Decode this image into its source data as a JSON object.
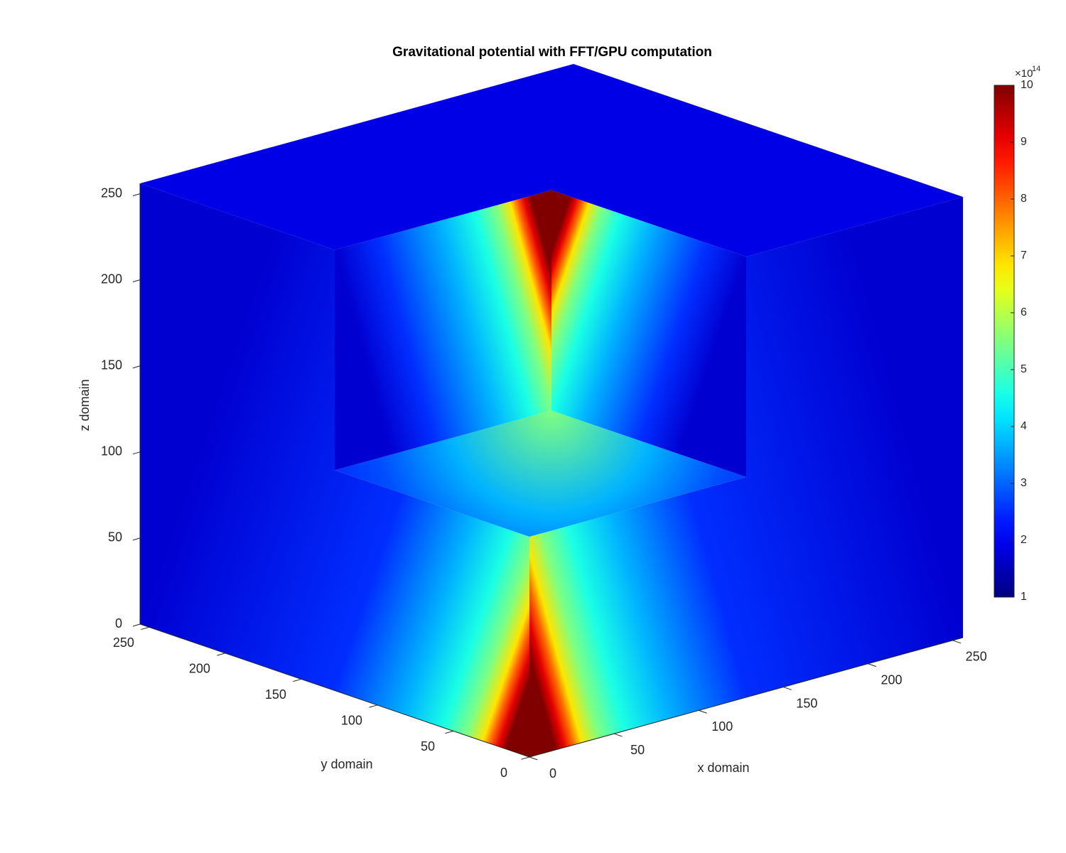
{
  "chart_data": {
    "type": "slice3d",
    "title": "Gravitational potential with FFT/GPU computation",
    "xlabel": "x domain",
    "ylabel": "y domain",
    "zlabel": "z domain",
    "xlim": [
      0,
      256
    ],
    "ylim": [
      0,
      256
    ],
    "zlim": [
      0,
      256
    ],
    "xticks": [
      0,
      50,
      100,
      150,
      200,
      250
    ],
    "yticks": [
      0,
      50,
      100,
      150,
      200,
      250
    ],
    "zticks": [
      0,
      50,
      100,
      150,
      200,
      250
    ],
    "colormap": "jet",
    "colorbar": {
      "clim": [
        1,
        10
      ],
      "ticks": [
        1,
        2,
        3,
        4,
        5,
        6,
        7,
        8,
        9,
        10
      ],
      "multiplier": "×10",
      "exponent": 14
    }
  }
}
